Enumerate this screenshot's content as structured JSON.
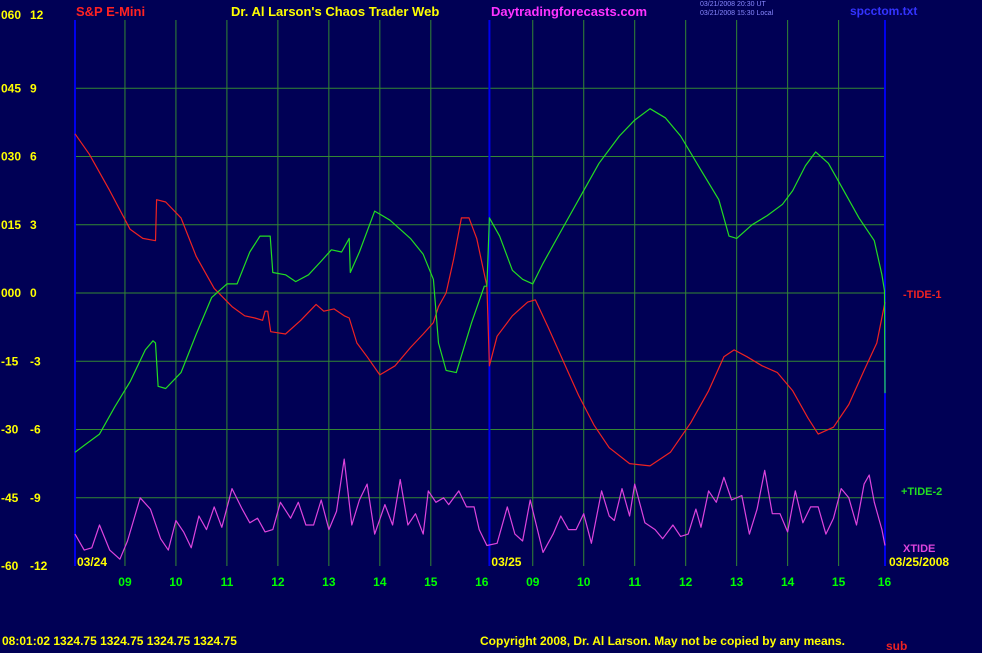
{
  "header": {
    "symbol": "S&P E-Mini",
    "title": "Dr. Al Larson's Chaos Trader Web",
    "site": "Daytradingforecasts.com",
    "ut_time": "03/21/2008 20:30 UT",
    "local_time": "03/21/2008 15:30 Local",
    "file": "spcctom.txt"
  },
  "footer": {
    "quote": "08:01:02  1324.75 1324.75 1324.75 1324.75",
    "copyright": "Copyright 2008, Dr. Al Larson. May not be copied by any means.",
    "overlap": "sub"
  },
  "colors": {
    "background": "#000055",
    "grid": "#338833",
    "border": "#0000ee",
    "axis_text": "#ffff00",
    "time_labels": "#00ff00",
    "tide1": "#ee2222",
    "tide2": "#22dd22",
    "xtide": "#dd44dd",
    "site": "#ff33ff",
    "symbol": "#ff2222",
    "title": "#ffff00",
    "file": "#3333ff"
  },
  "chart_data": {
    "type": "line",
    "y_left_labels": [
      "060",
      "045",
      "030",
      "015",
      "000",
      "-15",
      "-30",
      "-45",
      "-60"
    ],
    "y_right_labels": [
      "12",
      "9",
      "6",
      "3",
      "0",
      "-3",
      "-6",
      "-9",
      "-12"
    ],
    "ylim": [
      -12,
      12
    ],
    "x_hour_labels": [
      "09",
      "10",
      "11",
      "12",
      "13",
      "14",
      "15",
      "16",
      "09",
      "10",
      "11",
      "12",
      "13",
      "14",
      "15",
      "16"
    ],
    "date_labels": [
      "03/24",
      "03/25",
      "03/25/2008"
    ],
    "x_range": [
      8.02,
      23.91
    ],
    "series": [
      {
        "name": "-TIDE-1",
        "points": [
          [
            8.02,
            7.0
          ],
          [
            8.3,
            6.1
          ],
          [
            8.7,
            4.5
          ],
          [
            9.1,
            2.8
          ],
          [
            9.35,
            2.4
          ],
          [
            9.6,
            2.3
          ],
          [
            9.62,
            4.1
          ],
          [
            9.8,
            4.0
          ],
          [
            10.1,
            3.3
          ],
          [
            10.4,
            1.6
          ],
          [
            10.75,
            0.2
          ],
          [
            11.1,
            -0.6
          ],
          [
            11.35,
            -1.0
          ],
          [
            11.55,
            -1.1
          ],
          [
            11.7,
            -1.2
          ],
          [
            11.75,
            -0.8
          ],
          [
            11.8,
            -0.8
          ],
          [
            11.86,
            -1.7
          ],
          [
            12.15,
            -1.8
          ],
          [
            12.45,
            -1.2
          ],
          [
            12.75,
            -0.5
          ],
          [
            12.9,
            -0.8
          ],
          [
            13.1,
            -0.7
          ],
          [
            13.3,
            -1.0
          ],
          [
            13.4,
            -1.1
          ],
          [
            13.55,
            -2.2
          ],
          [
            13.75,
            -2.8
          ],
          [
            14.0,
            -3.6
          ],
          [
            14.3,
            -3.2
          ],
          [
            14.6,
            -2.4
          ],
          [
            14.85,
            -1.8
          ],
          [
            15.05,
            -1.3
          ],
          [
            15.15,
            -0.6
          ],
          [
            15.3,
            0.0
          ],
          [
            15.45,
            1.5
          ],
          [
            15.6,
            3.3
          ],
          [
            15.75,
            3.3
          ],
          [
            15.9,
            2.4
          ],
          [
            16.1,
            0.3
          ],
          [
            16.15,
            -3.2
          ],
          [
            16.3,
            -1.9
          ],
          [
            16.6,
            -1.0
          ],
          [
            16.75,
            -0.7
          ],
          [
            16.9,
            -0.4
          ],
          [
            17.05,
            -0.3
          ],
          [
            17.3,
            -1.5
          ],
          [
            17.6,
            -3.0
          ],
          [
            17.9,
            -4.5
          ],
          [
            18.2,
            -5.8
          ],
          [
            18.5,
            -6.8
          ],
          [
            18.9,
            -7.5
          ],
          [
            19.3,
            -7.6
          ],
          [
            19.7,
            -7.0
          ],
          [
            20.1,
            -5.7
          ],
          [
            20.45,
            -4.3
          ],
          [
            20.75,
            -2.8
          ],
          [
            20.95,
            -2.5
          ],
          [
            21.2,
            -2.8
          ],
          [
            21.5,
            -3.2
          ],
          [
            21.8,
            -3.5
          ],
          [
            22.1,
            -4.3
          ],
          [
            22.4,
            -5.5
          ],
          [
            22.6,
            -6.2
          ],
          [
            22.9,
            -5.9
          ],
          [
            23.2,
            -4.9
          ],
          [
            23.5,
            -3.4
          ],
          [
            23.75,
            -2.2
          ],
          [
            23.91,
            -0.4
          ]
        ]
      },
      {
        "name": "+TIDE-2",
        "points": [
          [
            8.02,
            -7.0
          ],
          [
            8.2,
            -6.7
          ],
          [
            8.5,
            -6.2
          ],
          [
            8.8,
            -5.0
          ],
          [
            9.1,
            -3.9
          ],
          [
            9.4,
            -2.5
          ],
          [
            9.55,
            -2.1
          ],
          [
            9.6,
            -2.2
          ],
          [
            9.65,
            -4.1
          ],
          [
            9.8,
            -4.2
          ],
          [
            10.1,
            -3.5
          ],
          [
            10.4,
            -1.8
          ],
          [
            10.7,
            -0.2
          ],
          [
            11.0,
            0.4
          ],
          [
            11.2,
            0.4
          ],
          [
            11.45,
            1.8
          ],
          [
            11.65,
            2.5
          ],
          [
            11.85,
            2.5
          ],
          [
            11.9,
            0.9
          ],
          [
            12.15,
            0.8
          ],
          [
            12.35,
            0.5
          ],
          [
            12.6,
            0.8
          ],
          [
            12.85,
            1.4
          ],
          [
            13.05,
            1.9
          ],
          [
            13.25,
            1.8
          ],
          [
            13.4,
            2.4
          ],
          [
            13.42,
            0.9
          ],
          [
            13.6,
            1.8
          ],
          [
            13.9,
            3.6
          ],
          [
            14.2,
            3.2
          ],
          [
            14.6,
            2.4
          ],
          [
            14.85,
            1.7
          ],
          [
            15.05,
            0.6
          ],
          [
            15.15,
            -2.2
          ],
          [
            15.3,
            -3.4
          ],
          [
            15.5,
            -3.5
          ],
          [
            15.8,
            -1.3
          ],
          [
            16.05,
            0.3
          ],
          [
            16.1,
            0.3
          ],
          [
            16.15,
            3.3
          ],
          [
            16.35,
            2.5
          ],
          [
            16.6,
            1.0
          ],
          [
            16.8,
            0.6
          ],
          [
            17.0,
            0.4
          ],
          [
            17.2,
            1.3
          ],
          [
            17.6,
            2.9
          ],
          [
            17.9,
            4.1
          ],
          [
            18.3,
            5.7
          ],
          [
            18.7,
            6.9
          ],
          [
            19.0,
            7.6
          ],
          [
            19.3,
            8.1
          ],
          [
            19.6,
            7.7
          ],
          [
            19.9,
            6.9
          ],
          [
            20.3,
            5.4
          ],
          [
            20.65,
            4.1
          ],
          [
            20.85,
            2.5
          ],
          [
            21.0,
            2.4
          ],
          [
            21.3,
            3.0
          ],
          [
            21.6,
            3.4
          ],
          [
            21.9,
            3.9
          ],
          [
            22.1,
            4.5
          ],
          [
            22.35,
            5.6
          ],
          [
            22.55,
            6.2
          ],
          [
            22.8,
            5.7
          ],
          [
            23.05,
            4.7
          ],
          [
            23.4,
            3.3
          ],
          [
            23.7,
            2.3
          ],
          [
            23.85,
            0.8
          ],
          [
            23.9,
            0.1
          ],
          [
            23.91,
            -4.4
          ]
        ]
      },
      {
        "name": "XTIDE",
        "points": [
          [
            8.02,
            -10.6
          ],
          [
            8.2,
            -11.3
          ],
          [
            8.35,
            -11.2
          ],
          [
            8.5,
            -10.2
          ],
          [
            8.7,
            -11.3
          ],
          [
            8.9,
            -11.7
          ],
          [
            9.05,
            -10.9
          ],
          [
            9.3,
            -9.0
          ],
          [
            9.5,
            -9.5
          ],
          [
            9.7,
            -10.8
          ],
          [
            9.85,
            -11.3
          ],
          [
            10.0,
            -10.0
          ],
          [
            10.15,
            -10.5
          ],
          [
            10.3,
            -11.2
          ],
          [
            10.45,
            -9.8
          ],
          [
            10.6,
            -10.4
          ],
          [
            10.75,
            -9.4
          ],
          [
            10.9,
            -10.3
          ],
          [
            11.1,
            -8.6
          ],
          [
            11.3,
            -9.5
          ],
          [
            11.45,
            -10.1
          ],
          [
            11.6,
            -9.9
          ],
          [
            11.75,
            -10.5
          ],
          [
            11.9,
            -10.4
          ],
          [
            12.05,
            -9.2
          ],
          [
            12.25,
            -9.9
          ],
          [
            12.4,
            -9.2
          ],
          [
            12.55,
            -10.2
          ],
          [
            12.7,
            -10.2
          ],
          [
            12.85,
            -9.1
          ],
          [
            13.0,
            -10.4
          ],
          [
            13.15,
            -9.6
          ],
          [
            13.3,
            -7.3
          ],
          [
            13.45,
            -10.2
          ],
          [
            13.6,
            -9.1
          ],
          [
            13.75,
            -8.4
          ],
          [
            13.9,
            -10.6
          ],
          [
            14.1,
            -9.3
          ],
          [
            14.25,
            -10.2
          ],
          [
            14.4,
            -8.2
          ],
          [
            14.55,
            -10.2
          ],
          [
            14.7,
            -9.7
          ],
          [
            14.85,
            -10.6
          ],
          [
            14.95,
            -8.7
          ],
          [
            15.1,
            -9.2
          ],
          [
            15.25,
            -9.0
          ],
          [
            15.35,
            -9.3
          ],
          [
            15.55,
            -8.7
          ],
          [
            15.7,
            -9.4
          ],
          [
            15.85,
            -9.4
          ],
          [
            15.95,
            -10.4
          ],
          [
            16.1,
            -11.1
          ],
          [
            16.3,
            -11.0
          ],
          [
            16.5,
            -9.4
          ],
          [
            16.65,
            -10.6
          ],
          [
            16.8,
            -10.9
          ],
          [
            16.95,
            -9.1
          ],
          [
            17.2,
            -11.4
          ],
          [
            17.4,
            -10.6
          ],
          [
            17.55,
            -9.8
          ],
          [
            17.7,
            -10.4
          ],
          [
            17.85,
            -10.4
          ],
          [
            18.0,
            -9.7
          ],
          [
            18.15,
            -11.0
          ],
          [
            18.35,
            -8.7
          ],
          [
            18.5,
            -9.8
          ],
          [
            18.6,
            -10.0
          ],
          [
            18.75,
            -8.6
          ],
          [
            18.9,
            -9.8
          ],
          [
            19.0,
            -8.4
          ],
          [
            19.2,
            -10.1
          ],
          [
            19.4,
            -10.4
          ],
          [
            19.55,
            -10.8
          ],
          [
            19.75,
            -10.2
          ],
          [
            19.9,
            -10.7
          ],
          [
            20.05,
            -10.6
          ],
          [
            20.2,
            -9.5
          ],
          [
            20.3,
            -10.3
          ],
          [
            20.45,
            -8.7
          ],
          [
            20.6,
            -9.2
          ],
          [
            20.75,
            -8.1
          ],
          [
            20.9,
            -9.1
          ],
          [
            21.1,
            -8.9
          ],
          [
            21.25,
            -10.6
          ],
          [
            21.4,
            -9.5
          ],
          [
            21.55,
            -7.8
          ],
          [
            21.7,
            -9.7
          ],
          [
            21.85,
            -9.7
          ],
          [
            22.0,
            -10.5
          ],
          [
            22.15,
            -8.7
          ],
          [
            22.3,
            -10.1
          ],
          [
            22.45,
            -9.4
          ],
          [
            22.6,
            -9.4
          ],
          [
            22.75,
            -10.6
          ],
          [
            22.9,
            -9.9
          ],
          [
            23.05,
            -8.6
          ],
          [
            23.2,
            -9.0
          ],
          [
            23.35,
            -10.2
          ],
          [
            23.5,
            -8.4
          ],
          [
            23.6,
            -8.0
          ],
          [
            23.7,
            -9.2
          ],
          [
            23.85,
            -10.4
          ],
          [
            23.91,
            -11.1
          ]
        ]
      }
    ]
  }
}
